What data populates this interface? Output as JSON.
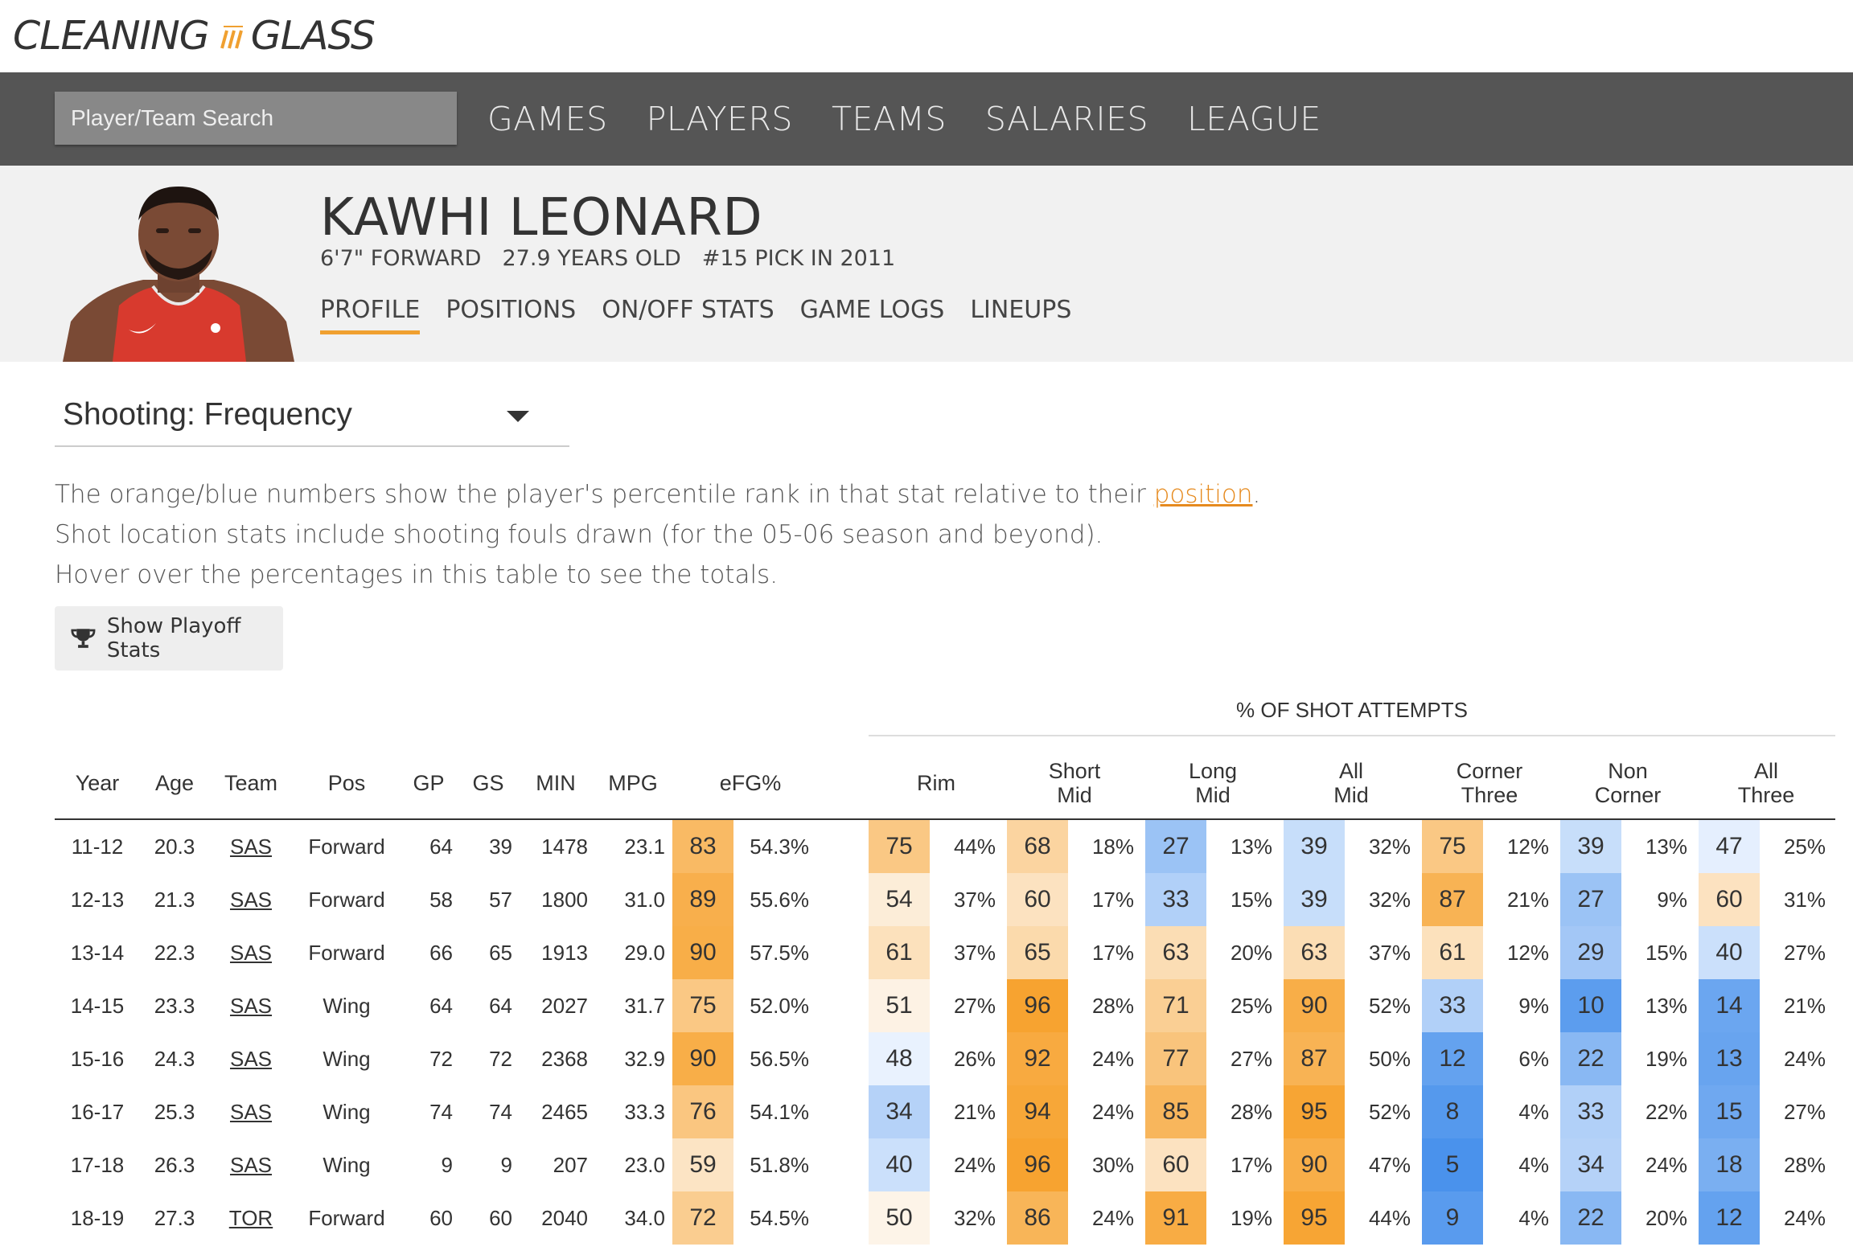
{
  "logo": {
    "left": "CLEANING",
    "right": "GLASS"
  },
  "search": {
    "placeholder": "Player/Team Search"
  },
  "nav": [
    "GAMES",
    "PLAYERS",
    "TEAMS",
    "SALARIES",
    "LEAGUE"
  ],
  "player": {
    "name": "KAWHI LEONARD",
    "meta": [
      "6'7\" FORWARD",
      "27.9 YEARS OLD",
      "#15 PICK IN 2011"
    ],
    "tabs": [
      "PROFILE",
      "POSITIONS",
      "ON/OFF STATS",
      "GAME LOGS",
      "LINEUPS"
    ],
    "active_tab": "PROFILE"
  },
  "view_select": {
    "value": "Shooting: Frequency"
  },
  "notes": {
    "line1_prefix": "The orange/blue numbers show the player's percentile rank in that stat relative to their ",
    "line1_link": "position",
    "line1_suffix": ".",
    "line2": "Shot location stats include shooting fouls drawn (for the 05-06 season and beyond).",
    "line3": "Hover over the percentages in this table to see the totals."
  },
  "playoff_button": {
    "label": "Show Playoff Stats",
    "icon": "trophy-icon"
  },
  "table": {
    "group_header": "% OF SHOT ATTEMPTS",
    "headers": {
      "year": "Year",
      "age": "Age",
      "team": "Team",
      "pos": "Pos",
      "gp": "GP",
      "gs": "GS",
      "min": "MIN",
      "mpg": "MPG",
      "efg": "eFG%",
      "rim": "Rim",
      "short_mid": [
        "Short",
        "Mid"
      ],
      "long_mid": [
        "Long",
        "Mid"
      ],
      "all_mid": [
        "All",
        "Mid"
      ],
      "corner_three": [
        "Corner",
        "Three"
      ],
      "non_corner": [
        "Non",
        "Corner"
      ],
      "all_three": [
        "All",
        "Three"
      ]
    },
    "rows": [
      {
        "year": "11-12",
        "age": "20.3",
        "team": "SAS",
        "pos": "Forward",
        "gp": "64",
        "gs": "39",
        "min": "1478",
        "mpg": "23.1",
        "efg": {
          "rank": "83",
          "val": "54.3%"
        },
        "rim": {
          "rank": "75",
          "val": "44%"
        },
        "short_mid": {
          "rank": "68",
          "val": "18%"
        },
        "long_mid": {
          "rank": "27",
          "val": "13%"
        },
        "all_mid": {
          "rank": "39",
          "val": "32%"
        },
        "corner_three": {
          "rank": "75",
          "val": "12%"
        },
        "non_corner": {
          "rank": "39",
          "val": "13%"
        },
        "all_three": {
          "rank": "47",
          "val": "25%"
        }
      },
      {
        "year": "12-13",
        "age": "21.3",
        "team": "SAS",
        "pos": "Forward",
        "gp": "58",
        "gs": "57",
        "min": "1800",
        "mpg": "31.0",
        "efg": {
          "rank": "89",
          "val": "55.6%"
        },
        "rim": {
          "rank": "54",
          "val": "37%"
        },
        "short_mid": {
          "rank": "60",
          "val": "17%"
        },
        "long_mid": {
          "rank": "33",
          "val": "15%"
        },
        "all_mid": {
          "rank": "39",
          "val": "32%"
        },
        "corner_three": {
          "rank": "87",
          "val": "21%"
        },
        "non_corner": {
          "rank": "27",
          "val": "9%"
        },
        "all_three": {
          "rank": "60",
          "val": "31%"
        }
      },
      {
        "year": "13-14",
        "age": "22.3",
        "team": "SAS",
        "pos": "Forward",
        "gp": "66",
        "gs": "65",
        "min": "1913",
        "mpg": "29.0",
        "efg": {
          "rank": "90",
          "val": "57.5%"
        },
        "rim": {
          "rank": "61",
          "val": "37%"
        },
        "short_mid": {
          "rank": "65",
          "val": "17%"
        },
        "long_mid": {
          "rank": "63",
          "val": "20%"
        },
        "all_mid": {
          "rank": "63",
          "val": "37%"
        },
        "corner_three": {
          "rank": "61",
          "val": "12%"
        },
        "non_corner": {
          "rank": "29",
          "val": "15%"
        },
        "all_three": {
          "rank": "40",
          "val": "27%"
        }
      },
      {
        "year": "14-15",
        "age": "23.3",
        "team": "SAS",
        "pos": "Wing",
        "gp": "64",
        "gs": "64",
        "min": "2027",
        "mpg": "31.7",
        "efg": {
          "rank": "75",
          "val": "52.0%"
        },
        "rim": {
          "rank": "51",
          "val": "27%"
        },
        "short_mid": {
          "rank": "96",
          "val": "28%"
        },
        "long_mid": {
          "rank": "71",
          "val": "25%"
        },
        "all_mid": {
          "rank": "90",
          "val": "52%"
        },
        "corner_three": {
          "rank": "33",
          "val": "9%"
        },
        "non_corner": {
          "rank": "10",
          "val": "13%"
        },
        "all_three": {
          "rank": "14",
          "val": "21%"
        }
      },
      {
        "year": "15-16",
        "age": "24.3",
        "team": "SAS",
        "pos": "Wing",
        "gp": "72",
        "gs": "72",
        "min": "2368",
        "mpg": "32.9",
        "efg": {
          "rank": "90",
          "val": "56.5%"
        },
        "rim": {
          "rank": "48",
          "val": "26%"
        },
        "short_mid": {
          "rank": "92",
          "val": "24%"
        },
        "long_mid": {
          "rank": "77",
          "val": "27%"
        },
        "all_mid": {
          "rank": "87",
          "val": "50%"
        },
        "corner_three": {
          "rank": "12",
          "val": "6%"
        },
        "non_corner": {
          "rank": "22",
          "val": "19%"
        },
        "all_three": {
          "rank": "13",
          "val": "24%"
        }
      },
      {
        "year": "16-17",
        "age": "25.3",
        "team": "SAS",
        "pos": "Wing",
        "gp": "74",
        "gs": "74",
        "min": "2465",
        "mpg": "33.3",
        "efg": {
          "rank": "76",
          "val": "54.1%"
        },
        "rim": {
          "rank": "34",
          "val": "21%"
        },
        "short_mid": {
          "rank": "94",
          "val": "24%"
        },
        "long_mid": {
          "rank": "85",
          "val": "28%"
        },
        "all_mid": {
          "rank": "95",
          "val": "52%"
        },
        "corner_three": {
          "rank": "8",
          "val": "4%"
        },
        "non_corner": {
          "rank": "33",
          "val": "22%"
        },
        "all_three": {
          "rank": "15",
          "val": "27%"
        }
      },
      {
        "year": "17-18",
        "age": "26.3",
        "team": "SAS",
        "pos": "Wing",
        "gp": "9",
        "gs": "9",
        "min": "207",
        "mpg": "23.0",
        "efg": {
          "rank": "59",
          "val": "51.8%"
        },
        "rim": {
          "rank": "40",
          "val": "24%"
        },
        "short_mid": {
          "rank": "96",
          "val": "30%"
        },
        "long_mid": {
          "rank": "60",
          "val": "17%"
        },
        "all_mid": {
          "rank": "90",
          "val": "47%"
        },
        "corner_three": {
          "rank": "5",
          "val": "4%"
        },
        "non_corner": {
          "rank": "34",
          "val": "24%"
        },
        "all_three": {
          "rank": "18",
          "val": "28%"
        }
      },
      {
        "year": "18-19",
        "age": "27.3",
        "team": "TOR",
        "pos": "Forward",
        "gp": "60",
        "gs": "60",
        "min": "2040",
        "mpg": "34.0",
        "efg": {
          "rank": "72",
          "val": "54.5%"
        },
        "rim": {
          "rank": "50",
          "val": "32%"
        },
        "short_mid": {
          "rank": "86",
          "val": "24%"
        },
        "long_mid": {
          "rank": "91",
          "val": "19%"
        },
        "all_mid": {
          "rank": "95",
          "val": "44%"
        },
        "corner_three": {
          "rank": "9",
          "val": "4%"
        },
        "non_corner": {
          "rank": "22",
          "val": "20%"
        },
        "all_three": {
          "rank": "12",
          "val": "24%"
        }
      }
    ]
  },
  "colors": {
    "accent": "#f0a030",
    "nav_bg": "#555555",
    "profile_bg": "#f1f1f1",
    "link": "#e68a1e"
  }
}
